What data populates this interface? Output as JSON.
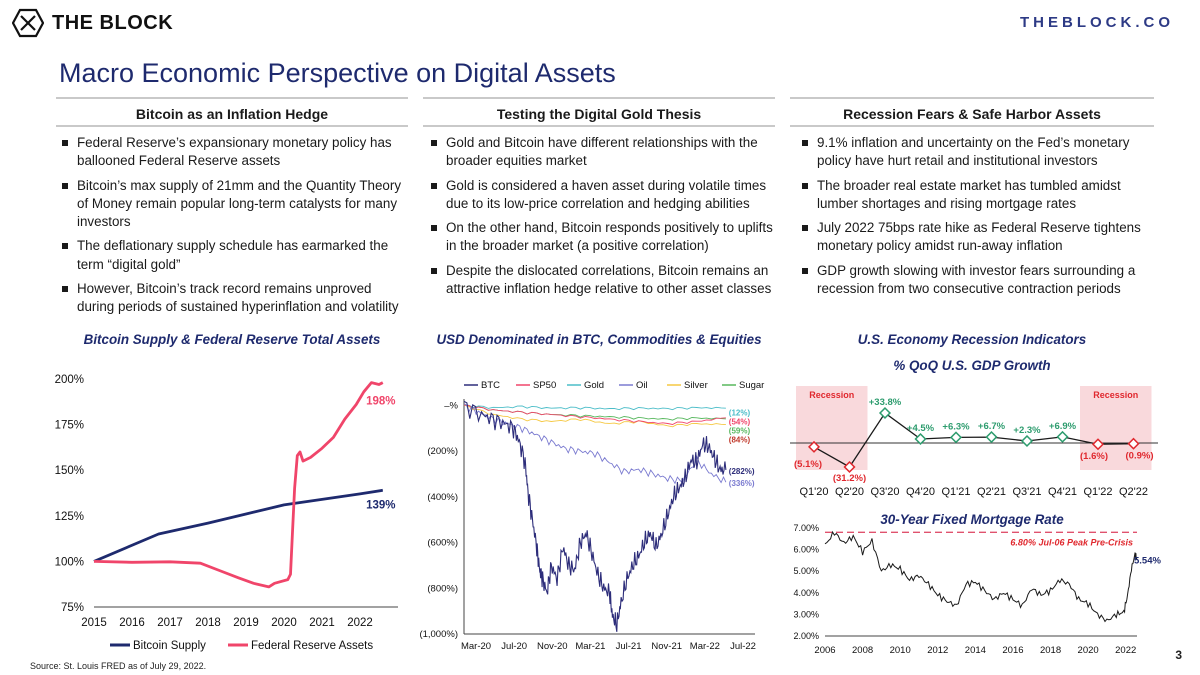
{
  "header": {
    "logo_text": "THE BLOCK",
    "site": "THEBLOCK.CO",
    "title": "Macro Economic Perspective on Digital Assets",
    "page_number": "3"
  },
  "columns": [
    {
      "heading": "Bitcoin as an Inflation Hedge",
      "bullets": [
        "Federal Reserve’s expansionary monetary policy has ballooned Federal Reserve assets",
        "Bitcoin’s max supply of 21mm and the Quantity Theory of Money remain popular long-term catalysts for many investors",
        "The deflationary supply schedule has earmarked the term “digital gold”",
        "However, Bitcoin’s track record remains unproved during periods of sustained hyperinflation and volatility"
      ]
    },
    {
      "heading": "Testing the Digital Gold Thesis",
      "bullets": [
        "Gold and Bitcoin have different relationships with the broader equities market",
        "Gold is considered a haven asset during volatile times due to its low-price correlation and hedging abilities",
        "On the other hand, Bitcoin responds positively to uplifts in the broader market (a positive correlation)",
        "Despite the dislocated correlations, Bitcoin remains an attractive inflation hedge relative to other asset classes"
      ]
    },
    {
      "heading": "Recession Fears & Safe Harbor Assets",
      "bullets": [
        "9.1% inflation and uncertainty on the Fed’s monetary policy have hurt retail and institutional investors",
        "The broader real estate market has tumbled amidst lumber shortages and rising mortgage rates",
        "July 2022 75bps rate hike as Federal Reserve tightens monetary policy amidst run-away inflation",
        "GDP growth slowing with investor fears surrounding a recession from two consecutive contraction periods"
      ]
    }
  ],
  "chart_data": [
    {
      "id": "supply",
      "type": "line",
      "title": "Bitcoin Supply & Federal Reserve Total Assets",
      "x_ticks": [
        "2015",
        "2016",
        "2017",
        "2018",
        "2019",
        "2020",
        "2021",
        "2022"
      ],
      "y_ticks": [
        "200%",
        "175%",
        "150%",
        "125%",
        "100%",
        "75%"
      ],
      "ylim": [
        75,
        200
      ],
      "xlim": [
        2015,
        2023
      ],
      "legend_position": "bottom",
      "series": [
        {
          "name": "Bitcoin Supply",
          "color": "#1e2a6e",
          "end_label": "139%",
          "points": [
            [
              2015,
              100
            ],
            [
              2016.7,
              115
            ],
            [
              2018,
              121
            ],
            [
              2019,
              126
            ],
            [
              2020,
              131
            ],
            [
              2021,
              134
            ],
            [
              2022,
              137
            ],
            [
              2022.6,
              139
            ]
          ]
        },
        {
          "name": "Federal Reserve Assets",
          "color": "#f0456a",
          "end_label": "198%",
          "points": [
            [
              2015,
              100
            ],
            [
              2016,
              99.5
            ],
            [
              2017,
              99.8
            ],
            [
              2017.8,
              99
            ],
            [
              2018.3,
              95
            ],
            [
              2018.8,
              91
            ],
            [
              2019.2,
              88
            ],
            [
              2019.6,
              86
            ],
            [
              2019.75,
              88
            ],
            [
              2020.1,
              90
            ],
            [
              2020.17,
              93
            ],
            [
              2020.22,
              115
            ],
            [
              2020.28,
              140
            ],
            [
              2020.35,
              158
            ],
            [
              2020.42,
              160
            ],
            [
              2020.5,
              155
            ],
            [
              2020.7,
              157
            ],
            [
              2021.0,
              162
            ],
            [
              2021.3,
              168
            ],
            [
              2021.6,
              178
            ],
            [
              2021.9,
              186
            ],
            [
              2022.1,
              193
            ],
            [
              2022.3,
              198
            ],
            [
              2022.5,
              197
            ],
            [
              2022.6,
              198
            ]
          ]
        }
      ]
    },
    {
      "id": "usd",
      "type": "line",
      "title": "USD Denominated in BTC, Commodities & Equities",
      "x_ticks": [
        "Mar-20",
        "Jul-20",
        "Nov-20",
        "Mar-21",
        "Jul-21",
        "Nov-21",
        "Mar-22",
        "Jul-22"
      ],
      "y_ticks": [
        "–%",
        "(200%)",
        "(400%)",
        "(600%)",
        "(800%)",
        "(1,000%)"
      ],
      "ylim": [
        -1000,
        50
      ],
      "legend_position": "top",
      "series": [
        {
          "name": "BTC",
          "color": "#2d2d7a",
          "end_label": "(282%)",
          "end_value": -282,
          "points": [
            [
              0,
              0
            ],
            [
              0.06,
              -40
            ],
            [
              0.1,
              -60
            ],
            [
              0.14,
              -80
            ],
            [
              0.17,
              -100
            ],
            [
              0.19,
              -160
            ],
            [
              0.21,
              -250
            ],
            [
              0.22,
              -380
            ],
            [
              0.235,
              -500
            ],
            [
              0.25,
              -620
            ],
            [
              0.26,
              -720
            ],
            [
              0.27,
              -760
            ],
            [
              0.285,
              -820
            ],
            [
              0.3,
              -700
            ],
            [
              0.32,
              -760
            ],
            [
              0.34,
              -620
            ],
            [
              0.36,
              -700
            ],
            [
              0.38,
              -720
            ],
            [
              0.4,
              -600
            ],
            [
              0.42,
              -560
            ],
            [
              0.44,
              -650
            ],
            [
              0.46,
              -740
            ],
            [
              0.48,
              -800
            ],
            [
              0.5,
              -820
            ],
            [
              0.51,
              -920
            ],
            [
              0.525,
              -960
            ],
            [
              0.54,
              -860
            ],
            [
              0.56,
              -760
            ],
            [
              0.58,
              -700
            ],
            [
              0.6,
              -660
            ],
            [
              0.62,
              -600
            ],
            [
              0.64,
              -560
            ],
            [
              0.66,
              -620
            ],
            [
              0.68,
              -560
            ],
            [
              0.7,
              -480
            ],
            [
              0.72,
              -400
            ],
            [
              0.74,
              -360
            ],
            [
              0.76,
              -320
            ],
            [
              0.78,
              -240
            ],
            [
              0.8,
              -250
            ],
            [
              0.82,
              -170
            ],
            [
              0.84,
              -180
            ],
            [
              0.86,
              -230
            ],
            [
              0.88,
              -282
            ],
            [
              0.9,
              -282
            ]
          ]
        },
        {
          "name": "SP50",
          "color": "#f0456a",
          "end_label": "(54%)",
          "end_value": -54,
          "points": [
            [
              0,
              0
            ],
            [
              0.1,
              -20
            ],
            [
              0.2,
              -30
            ],
            [
              0.3,
              -40
            ],
            [
              0.4,
              -50
            ],
            [
              0.5,
              -60
            ],
            [
              0.6,
              -70
            ],
            [
              0.7,
              -80
            ],
            [
              0.8,
              -70
            ],
            [
              0.9,
              -54
            ]
          ]
        },
        {
          "name": "Gold",
          "color": "#4bbdc8",
          "end_label": "(12%)",
          "end_value": -12,
          "points": [
            [
              0,
              0
            ],
            [
              0.1,
              -10
            ],
            [
              0.2,
              -5
            ],
            [
              0.3,
              -12
            ],
            [
              0.4,
              -10
            ],
            [
              0.5,
              -15
            ],
            [
              0.6,
              -12
            ],
            [
              0.7,
              -14
            ],
            [
              0.8,
              -10
            ],
            [
              0.9,
              -12
            ]
          ]
        },
        {
          "name": "Oil",
          "color": "#7b7bd0",
          "end_label": "(336%)",
          "end_value": -336,
          "points": [
            [
              0,
              0
            ],
            [
              0.05,
              -30
            ],
            [
              0.1,
              -60
            ],
            [
              0.15,
              -80
            ],
            [
              0.2,
              -100
            ],
            [
              0.25,
              -130
            ],
            [
              0.3,
              -160
            ],
            [
              0.35,
              -190
            ],
            [
              0.4,
              -200
            ],
            [
              0.45,
              -210
            ],
            [
              0.5,
              -250
            ],
            [
              0.55,
              -290
            ],
            [
              0.6,
              -280
            ],
            [
              0.65,
              -300
            ],
            [
              0.7,
              -320
            ],
            [
              0.75,
              -330
            ],
            [
              0.8,
              -240
            ],
            [
              0.85,
              -300
            ],
            [
              0.9,
              -336
            ]
          ]
        },
        {
          "name": "Silver",
          "color": "#f5c842",
          "end_label": "(84%)",
          "end_value": -84,
          "points": [
            [
              0,
              0
            ],
            [
              0.1,
              -40
            ],
            [
              0.2,
              -60
            ],
            [
              0.3,
              -70
            ],
            [
              0.4,
              -60
            ],
            [
              0.5,
              -80
            ],
            [
              0.6,
              -70
            ],
            [
              0.7,
              -90
            ],
            [
              0.8,
              -80
            ],
            [
              0.9,
              -84
            ]
          ]
        },
        {
          "name": "Sugar",
          "color": "#58b85e",
          "end_label": "(59%)",
          "end_value": -59,
          "points": [
            [
              0,
              0
            ],
            [
              0.1,
              -20
            ],
            [
              0.2,
              -30
            ],
            [
              0.3,
              -40
            ],
            [
              0.4,
              -45
            ],
            [
              0.5,
              -50
            ],
            [
              0.6,
              -55
            ],
            [
              0.7,
              -60
            ],
            [
              0.8,
              -55
            ],
            [
              0.9,
              -59
            ]
          ]
        }
      ]
    },
    {
      "id": "gdp",
      "type": "line",
      "title": "U.S. Economy Recession Indicators",
      "subtitle": "% QoQ U.S. GDP Growth",
      "categories": [
        "Q1'20",
        "Q2'20",
        "Q3'20",
        "Q4'20",
        "Q1'21",
        "Q2'21",
        "Q3'21",
        "Q4'21",
        "Q1'22",
        "Q2'22"
      ],
      "values": [
        -5.1,
        -31.2,
        33.8,
        4.5,
        6.3,
        6.7,
        2.3,
        6.9,
        -1.6,
        -0.9
      ],
      "labels": [
        "(5.1%)",
        "(31.2%)",
        "+33.8%",
        "+4.5%",
        "+6.3%",
        "+6.7%",
        "+2.3%",
        "+6.9%",
        "(1.6%)",
        "(0.9%)"
      ],
      "recession_label": "Recession",
      "recession_periods": [
        [
          0,
          1
        ],
        [
          8,
          9
        ]
      ],
      "ylim": [
        -40,
        40
      ],
      "colors": {
        "positive": "#2d9c6e",
        "negative": "#e0282e",
        "line": "#1a1a1a",
        "band": "#f9d9dc"
      }
    },
    {
      "id": "mortgage",
      "type": "line",
      "title": "30-Year Fixed Mortgage Rate",
      "x_ticks": [
        "2006",
        "2008",
        "2010",
        "2012",
        "2014",
        "2016",
        "2018",
        "2020",
        "2022"
      ],
      "y_ticks": [
        "7.00%",
        "6.00%",
        "5.00%",
        "4.00%",
        "3.00%",
        "2.00%"
      ],
      "ylim": [
        2,
        7
      ],
      "xlim": [
        2006,
        2022.6
      ],
      "peak_label": "6.80% Jul-06 Peak Pre-Crisis",
      "peak_value": 6.8,
      "end_label": "5.54%",
      "series": [
        {
          "name": "Mortgage Rate",
          "color": "#1a1a1a",
          "points": [
            [
              2006,
              6.2
            ],
            [
              2006.5,
              6.8
            ],
            [
              2007,
              6.3
            ],
            [
              2007.5,
              6.6
            ],
            [
              2008,
              5.9
            ],
            [
              2008.5,
              6.4
            ],
            [
              2009,
              5.0
            ],
            [
              2009.5,
              5.3
            ],
            [
              2010,
              5.1
            ],
            [
              2010.5,
              4.6
            ],
            [
              2011,
              4.8
            ],
            [
              2011.5,
              4.4
            ],
            [
              2012,
              3.9
            ],
            [
              2012.5,
              3.6
            ],
            [
              2013,
              3.4
            ],
            [
              2013.5,
              4.4
            ],
            [
              2014,
              4.5
            ],
            [
              2014.5,
              4.1
            ],
            [
              2015,
              3.7
            ],
            [
              2015.5,
              4.0
            ],
            [
              2016,
              3.7
            ],
            [
              2016.5,
              3.4
            ],
            [
              2017,
              4.2
            ],
            [
              2017.5,
              3.9
            ],
            [
              2018,
              4.1
            ],
            [
              2018.5,
              4.6
            ],
            [
              2019,
              4.4
            ],
            [
              2019.5,
              3.7
            ],
            [
              2020,
              3.5
            ],
            [
              2020.5,
              3.0
            ],
            [
              2021,
              2.7
            ],
            [
              2021.5,
              3.0
            ],
            [
              2021.9,
              3.1
            ],
            [
              2022.1,
              3.9
            ],
            [
              2022.3,
              5.1
            ],
            [
              2022.5,
              5.8
            ],
            [
              2022.6,
              5.54
            ]
          ]
        }
      ]
    }
  ],
  "source": "Source:      St. Louis FRED as of July 29, 2022."
}
